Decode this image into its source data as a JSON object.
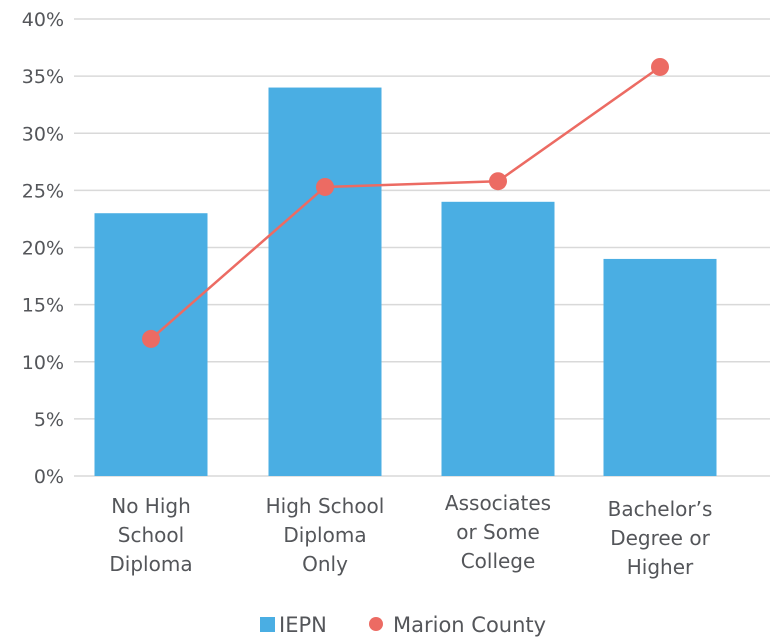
{
  "chart_data": {
    "type": "bar",
    "title": "",
    "xlabel": "",
    "ylabel": "",
    "categories": [
      [
        "No High",
        "School",
        "Diploma"
      ],
      [
        "High School",
        "Diploma",
        "Only"
      ],
      [
        "Associates",
        "or Some",
        "College"
      ],
      [
        "Bachelor’s",
        "Degree or",
        "Higher"
      ]
    ],
    "ylim": [
      0,
      40
    ],
    "yticks": [
      "0%",
      "5%",
      "10%",
      "15%",
      "20%",
      "25%",
      "30%",
      "35%",
      "40%"
    ],
    "grid": true,
    "legend_position": "bottom",
    "series": [
      {
        "name": "IEPN",
        "type": "bar",
        "color": "#4aaee3",
        "values": [
          23,
          34,
          24,
          19
        ]
      },
      {
        "name": "Marion County",
        "type": "line",
        "color": "#ec6b63",
        "values": [
          12,
          25.3,
          25.8,
          35.8
        ]
      }
    ]
  }
}
